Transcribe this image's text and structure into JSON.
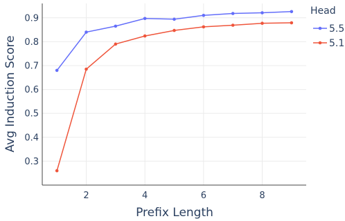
{
  "chart_data": {
    "type": "line",
    "title": "",
    "xlabel": "Prefix Length",
    "ylabel": "Avg Induction Score",
    "xlim": [
      0.5,
      9.5
    ],
    "ylim": [
      0.2,
      0.96
    ],
    "xticks": [
      2,
      4,
      6,
      8
    ],
    "yticks": [
      0.3,
      0.4,
      0.5,
      0.6,
      0.7,
      0.8,
      0.9
    ],
    "grid": true,
    "legend": {
      "title": "Head",
      "placement": "top-right"
    },
    "x": [
      1,
      2,
      3,
      4,
      5,
      6,
      7,
      8,
      9
    ],
    "series": [
      {
        "name": "5.5",
        "color": "#636efa",
        "values": [
          0.68,
          0.84,
          0.865,
          0.897,
          0.894,
          0.91,
          0.918,
          0.921,
          0.926
        ]
      },
      {
        "name": "5.1",
        "color": "#ef553b",
        "values": [
          0.26,
          0.685,
          0.79,
          0.824,
          0.847,
          0.862,
          0.869,
          0.877,
          0.879
        ]
      }
    ]
  }
}
